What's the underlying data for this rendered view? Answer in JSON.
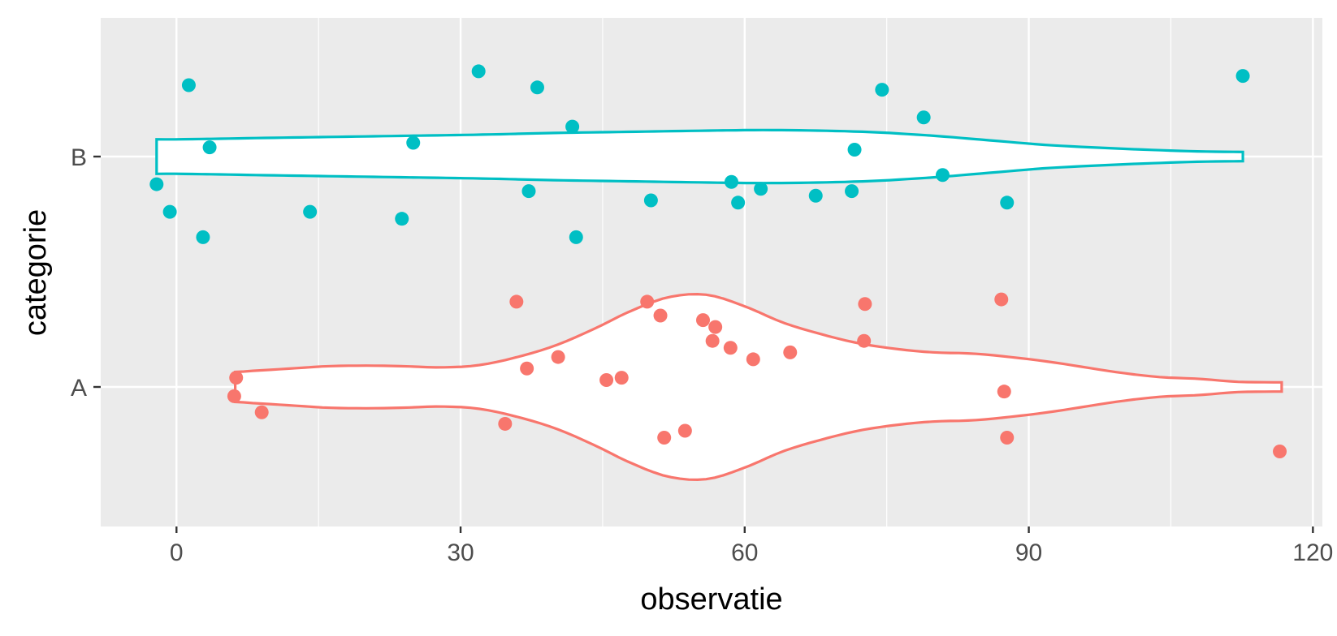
{
  "chart_data": {
    "type": "violin",
    "xlabel": "observatie",
    "ylabel": "categorie",
    "xlim": [
      -8,
      121
    ],
    "x_ticks": [
      0,
      30,
      60,
      90,
      120
    ],
    "categories": [
      "A",
      "B"
    ],
    "grid": true,
    "legend": "none",
    "colors": {
      "A": "#F8766D",
      "B": "#00BFC4",
      "panel": "#EBEBEB",
      "grid": "#FFFFFF"
    },
    "series": [
      {
        "category": "A",
        "violin_range": [
          6.2,
          116.7
        ],
        "density_profile": [
          [
            6.2,
            0.13
          ],
          [
            8,
            0.14
          ],
          [
            12,
            0.16
          ],
          [
            16,
            0.18
          ],
          [
            20,
            0.185
          ],
          [
            24,
            0.18
          ],
          [
            28,
            0.17
          ],
          [
            32,
            0.19
          ],
          [
            36,
            0.26
          ],
          [
            40,
            0.36
          ],
          [
            44,
            0.5
          ],
          [
            48,
            0.66
          ],
          [
            52,
            0.78
          ],
          [
            56,
            0.8
          ],
          [
            60,
            0.7
          ],
          [
            64,
            0.56
          ],
          [
            68,
            0.46
          ],
          [
            72,
            0.38
          ],
          [
            76,
            0.33
          ],
          [
            80,
            0.3
          ],
          [
            84,
            0.29
          ],
          [
            88,
            0.26
          ],
          [
            92,
            0.22
          ],
          [
            96,
            0.17
          ],
          [
            100,
            0.12
          ],
          [
            104,
            0.085
          ],
          [
            108,
            0.07
          ],
          [
            112,
            0.045
          ],
          [
            116.7,
            0.04
          ]
        ],
        "points": [
          [
            6.3,
            -0.04
          ],
          [
            6.1,
            0.04
          ],
          [
            9,
            0.11
          ],
          [
            34.7,
            0.16
          ],
          [
            35.9,
            -0.37
          ],
          [
            37,
            -0.08
          ],
          [
            40.3,
            -0.13
          ],
          [
            45.4,
            -0.03
          ],
          [
            47,
            -0.04
          ],
          [
            49.7,
            -0.37
          ],
          [
            51.1,
            -0.31
          ],
          [
            51.5,
            0.22
          ],
          [
            53.7,
            0.19
          ],
          [
            55.6,
            -0.29
          ],
          [
            56.9,
            -0.26
          ],
          [
            56.6,
            -0.2
          ],
          [
            58.5,
            -0.17
          ],
          [
            60.9,
            -0.12
          ],
          [
            64.8,
            -0.15
          ],
          [
            72.7,
            -0.36
          ],
          [
            72.6,
            -0.2
          ],
          [
            87.1,
            -0.38
          ],
          [
            87.4,
            0.02
          ],
          [
            87.7,
            0.22
          ],
          [
            116.5,
            0.28
          ]
        ]
      },
      {
        "category": "B",
        "violin_range": [
          -2.1,
          112.6
        ],
        "density_profile": [
          [
            -2.1,
            0.15
          ],
          [
            0,
            0.15
          ],
          [
            8,
            0.16
          ],
          [
            16,
            0.17
          ],
          [
            24,
            0.18
          ],
          [
            32,
            0.19
          ],
          [
            40,
            0.205
          ],
          [
            48,
            0.215
          ],
          [
            56,
            0.225
          ],
          [
            62,
            0.23
          ],
          [
            68,
            0.225
          ],
          [
            74,
            0.21
          ],
          [
            80,
            0.18
          ],
          [
            86,
            0.14
          ],
          [
            92,
            0.1
          ],
          [
            98,
            0.075
          ],
          [
            104,
            0.055
          ],
          [
            108,
            0.045
          ],
          [
            112.6,
            0.04
          ]
        ],
        "points": [
          [
            -2.1,
            0.12
          ],
          [
            -0.7,
            0.24
          ],
          [
            1.3,
            -0.31
          ],
          [
            3.5,
            -0.04
          ],
          [
            2.8,
            0.35
          ],
          [
            14.1,
            0.24
          ],
          [
            23.8,
            0.27
          ],
          [
            25,
            -0.06
          ],
          [
            31.9,
            -0.37
          ],
          [
            37.2,
            0.15
          ],
          [
            38.1,
            -0.3
          ],
          [
            41.8,
            -0.13
          ],
          [
            42.2,
            0.35
          ],
          [
            50.1,
            0.19
          ],
          [
            58.6,
            0.11
          ],
          [
            59.3,
            0.2
          ],
          [
            61.7,
            0.14
          ],
          [
            67.5,
            0.17
          ],
          [
            71.3,
            0.15
          ],
          [
            71.6,
            -0.03
          ],
          [
            74.5,
            -0.29
          ],
          [
            78.9,
            -0.17
          ],
          [
            80.9,
            0.08
          ],
          [
            87.7,
            0.2
          ],
          [
            112.6,
            -0.35
          ]
        ]
      }
    ]
  }
}
